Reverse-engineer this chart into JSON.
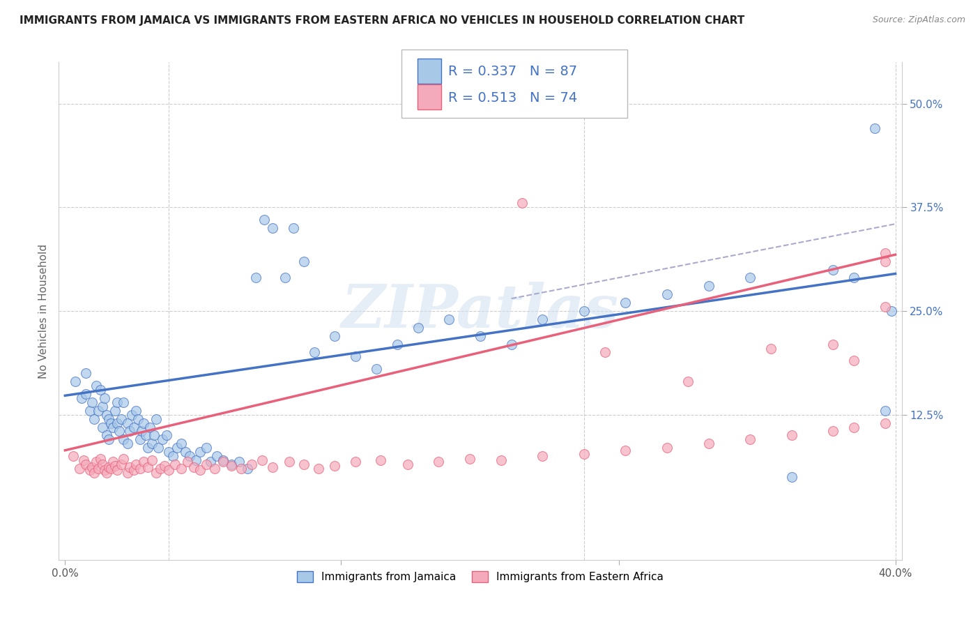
{
  "title": "IMMIGRANTS FROM JAMAICA VS IMMIGRANTS FROM EASTERN AFRICA NO VEHICLES IN HOUSEHOLD CORRELATION CHART",
  "source": "Source: ZipAtlas.com",
  "ylabel": "No Vehicles in Household",
  "legend_label1": "Immigrants from Jamaica",
  "legend_label2": "Immigrants from Eastern Africa",
  "color_jamaica": "#a8c8e8",
  "color_eastern_africa": "#f4aabb",
  "line_color_jamaica": "#4472c4",
  "line_color_eastern_africa": "#e8607a",
  "line_color_dashed": "#aaaacc",
  "watermark_text": "ZIPatlas",
  "xlim": [
    0.0,
    0.4
  ],
  "ylim": [
    -0.05,
    0.55
  ],
  "ytick_values": [
    0.125,
    0.25,
    0.375,
    0.5
  ],
  "ytick_labels": [
    "12.5%",
    "25.0%",
    "37.5%",
    "50.0%"
  ],
  "jamaica_line_x0": 0.0,
  "jamaica_line_y0": 0.148,
  "jamaica_line_x1": 0.4,
  "jamaica_line_y1": 0.295,
  "eastern_line_x0": 0.0,
  "eastern_line_y0": 0.082,
  "eastern_line_x1": 0.4,
  "eastern_line_y1": 0.318,
  "dashed_line_x0": 0.215,
  "dashed_line_y0": 0.265,
  "dashed_line_x1": 0.4,
  "dashed_line_y1": 0.355,
  "jamaica_x": [
    0.005,
    0.008,
    0.01,
    0.01,
    0.012,
    0.013,
    0.014,
    0.015,
    0.016,
    0.017,
    0.018,
    0.018,
    0.019,
    0.02,
    0.02,
    0.021,
    0.021,
    0.022,
    0.023,
    0.024,
    0.025,
    0.025,
    0.026,
    0.027,
    0.028,
    0.028,
    0.03,
    0.03,
    0.031,
    0.032,
    0.033,
    0.034,
    0.035,
    0.036,
    0.037,
    0.038,
    0.039,
    0.04,
    0.041,
    0.042,
    0.043,
    0.044,
    0.045,
    0.047,
    0.049,
    0.05,
    0.052,
    0.054,
    0.056,
    0.058,
    0.06,
    0.063,
    0.065,
    0.068,
    0.07,
    0.073,
    0.076,
    0.08,
    0.084,
    0.088,
    0.092,
    0.096,
    0.1,
    0.106,
    0.11,
    0.115,
    0.12,
    0.13,
    0.14,
    0.15,
    0.16,
    0.17,
    0.185,
    0.2,
    0.215,
    0.23,
    0.25,
    0.27,
    0.29,
    0.31,
    0.33,
    0.35,
    0.37,
    0.38,
    0.39,
    0.395,
    0.398
  ],
  "jamaica_y": [
    0.165,
    0.145,
    0.15,
    0.175,
    0.13,
    0.14,
    0.12,
    0.16,
    0.13,
    0.155,
    0.11,
    0.135,
    0.145,
    0.1,
    0.125,
    0.095,
    0.12,
    0.115,
    0.11,
    0.13,
    0.14,
    0.115,
    0.105,
    0.12,
    0.095,
    0.14,
    0.09,
    0.115,
    0.105,
    0.125,
    0.11,
    0.13,
    0.12,
    0.095,
    0.105,
    0.115,
    0.1,
    0.085,
    0.11,
    0.09,
    0.1,
    0.12,
    0.085,
    0.095,
    0.1,
    0.08,
    0.075,
    0.085,
    0.09,
    0.08,
    0.075,
    0.07,
    0.08,
    0.085,
    0.068,
    0.075,
    0.07,
    0.065,
    0.068,
    0.06,
    0.29,
    0.36,
    0.35,
    0.29,
    0.35,
    0.31,
    0.2,
    0.22,
    0.195,
    0.18,
    0.21,
    0.23,
    0.24,
    0.22,
    0.21,
    0.24,
    0.25,
    0.26,
    0.27,
    0.28,
    0.29,
    0.05,
    0.3,
    0.29,
    0.47,
    0.13,
    0.25
  ],
  "eastern_x": [
    0.004,
    0.007,
    0.009,
    0.01,
    0.012,
    0.013,
    0.014,
    0.015,
    0.016,
    0.017,
    0.018,
    0.019,
    0.02,
    0.021,
    0.022,
    0.023,
    0.024,
    0.025,
    0.027,
    0.028,
    0.03,
    0.031,
    0.033,
    0.034,
    0.036,
    0.038,
    0.04,
    0.042,
    0.044,
    0.046,
    0.048,
    0.05,
    0.053,
    0.056,
    0.059,
    0.062,
    0.065,
    0.068,
    0.072,
    0.076,
    0.08,
    0.085,
    0.09,
    0.095,
    0.1,
    0.108,
    0.115,
    0.122,
    0.13,
    0.14,
    0.152,
    0.165,
    0.18,
    0.195,
    0.21,
    0.23,
    0.25,
    0.27,
    0.29,
    0.31,
    0.33,
    0.35,
    0.37,
    0.38,
    0.395,
    0.22,
    0.26,
    0.3,
    0.34,
    0.37,
    0.38,
    0.395,
    0.395,
    0.395
  ],
  "eastern_y": [
    0.075,
    0.06,
    0.07,
    0.065,
    0.058,
    0.062,
    0.055,
    0.068,
    0.06,
    0.072,
    0.065,
    0.058,
    0.055,
    0.062,
    0.06,
    0.068,
    0.063,
    0.058,
    0.065,
    0.072,
    0.055,
    0.062,
    0.058,
    0.065,
    0.06,
    0.068,
    0.062,
    0.07,
    0.055,
    0.06,
    0.063,
    0.058,
    0.065,
    0.06,
    0.068,
    0.062,
    0.058,
    0.065,
    0.06,
    0.068,
    0.063,
    0.06,
    0.065,
    0.07,
    0.062,
    0.068,
    0.065,
    0.06,
    0.063,
    0.068,
    0.07,
    0.065,
    0.068,
    0.072,
    0.07,
    0.075,
    0.078,
    0.082,
    0.085,
    0.09,
    0.095,
    0.1,
    0.105,
    0.11,
    0.115,
    0.38,
    0.2,
    0.165,
    0.205,
    0.21,
    0.19,
    0.255,
    0.32,
    0.31
  ]
}
